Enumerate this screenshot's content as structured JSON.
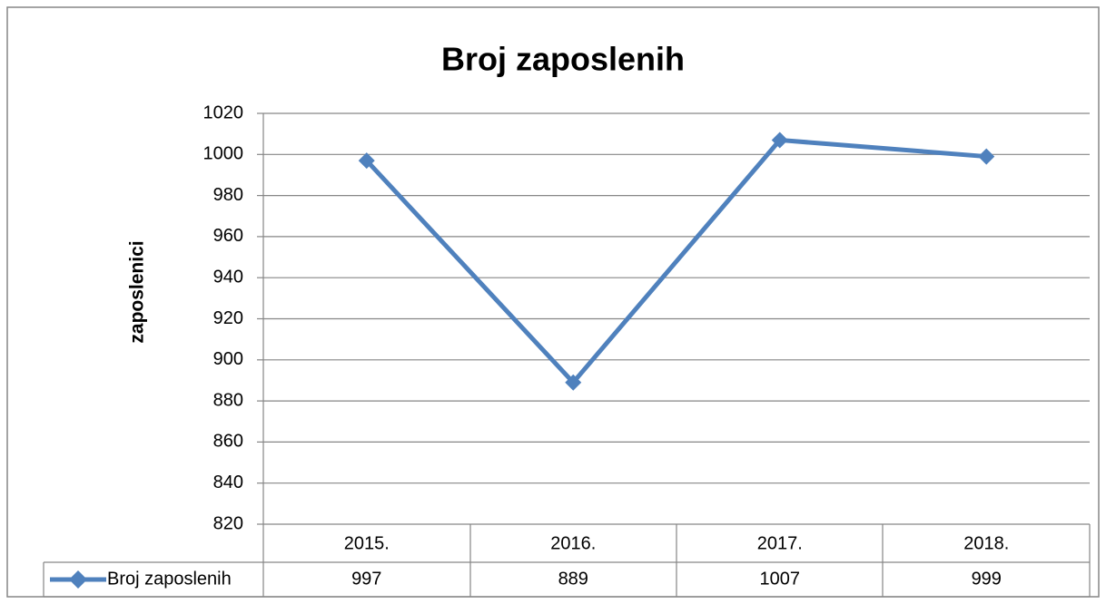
{
  "chart_data": {
    "type": "line",
    "title": "Broj zaposlenih",
    "y_label": "zaposlenici",
    "categories": [
      "2015.",
      "2016.",
      "2017.",
      "2018."
    ],
    "series": [
      {
        "name": "Broj zaposlenih",
        "color": "#4f81bd",
        "values": [
          997,
          889,
          1007,
          999
        ]
      }
    ],
    "ylim": [
      820,
      1020
    ],
    "yticks": [
      820,
      840,
      860,
      880,
      900,
      920,
      940,
      960,
      980,
      1000,
      1020
    ],
    "grid": true
  }
}
